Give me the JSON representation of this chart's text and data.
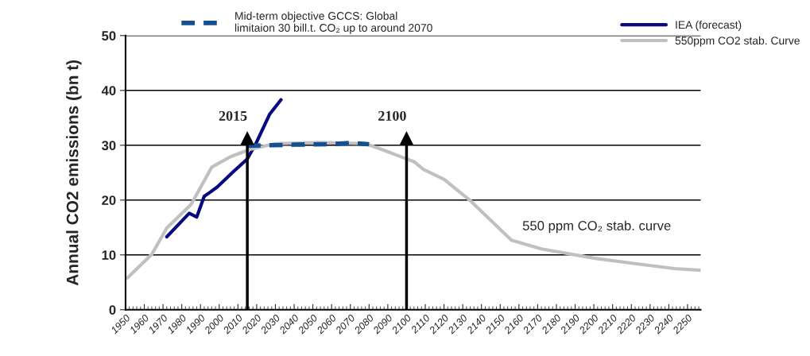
{
  "chart_data": {
    "type": "line",
    "ylabel": "Annual CO2 emissions (bn t)",
    "xlim": [
      1950,
      2257
    ],
    "ylim": [
      0,
      50
    ],
    "xticks": [
      1950,
      1960,
      1970,
      1980,
      1990,
      2000,
      2010,
      2020,
      2030,
      2040,
      2050,
      2060,
      2070,
      2080,
      2090,
      2100,
      2110,
      2120,
      2130,
      2140,
      2150,
      2160,
      2170,
      2180,
      2190,
      2200,
      2210,
      2220,
      2230,
      2240,
      2250
    ],
    "yticks": [
      0,
      10,
      20,
      30,
      40,
      50
    ],
    "grid": "y",
    "legend": "top",
    "series": [
      {
        "name": "Mid-term objective GCCS: Global\nlimitaion 30 bill.t. CO₂ up to around 2070",
        "color": "#14508f",
        "line_style": "dashed",
        "x": [
          2015,
          2040,
          2060,
          2070,
          2080
        ],
        "values": [
          29.9,
          30.1,
          30.2,
          30.4,
          30.2
        ]
      },
      {
        "name": "IEA (forecast)",
        "color": "#0a0a80",
        "line_style": "solid",
        "x": [
          1972,
          1984,
          1988,
          1992,
          1995,
          1999,
          2007,
          2015,
          2020,
          2027,
          2033
        ],
        "values": [
          13.3,
          17.6,
          16.9,
          20.7,
          21.4,
          22.4,
          25.0,
          27.5,
          30.6,
          35.7,
          38.3
        ]
      },
      {
        "name": "550ppm CO2 stab. Curve",
        "color": "#c0c0c0",
        "line_style": "solid",
        "x": [
          1951,
          1964,
          1972,
          1985,
          1996,
          2006,
          2016,
          2030,
          2053,
          2078,
          2087,
          2104,
          2109,
          2120,
          2134,
          2156,
          2172,
          2200,
          2222,
          2243,
          2257
        ],
        "values": [
          5.8,
          10.1,
          14.9,
          19.2,
          26.0,
          27.9,
          29.2,
          30.3,
          30.5,
          30.3,
          29.2,
          27.0,
          25.6,
          23.8,
          19.9,
          12.7,
          11.1,
          9.4,
          8.4,
          7.5,
          7.2
        ]
      }
    ],
    "ref_lines": [
      {
        "axis": "x",
        "value": 2015,
        "label": "2015"
      },
      {
        "axis": "x",
        "value": 2100,
        "label": "2100"
      }
    ],
    "annotations": [
      "550 ppm CO₂ stab. curve"
    ]
  }
}
